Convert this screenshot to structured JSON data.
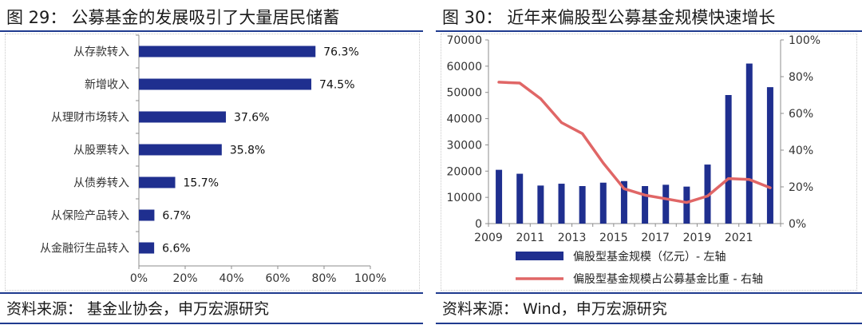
{
  "left": {
    "title": {
      "label": "图 29：",
      "text": "公募基金的发展吸引了大量居民储蓄"
    },
    "source": {
      "label": "资料来源：",
      "text": "基金业协会，申万宏源研究"
    }
  },
  "right": {
    "title": {
      "label": "图 30：",
      "text": "近年来偏股型公募基金规模快速增长"
    },
    "source": {
      "label": "资料来源：",
      "text": "Wind，申万宏源研究"
    }
  },
  "colors": {
    "bar": "#1f2f8f",
    "line": "#e06666",
    "rule": "#1f3b8f",
    "axis": "#8c8c8c"
  },
  "chart_data": [
    {
      "type": "bar",
      "orientation": "horizontal",
      "categories": [
        "从存款转入",
        "新增收入",
        "从理财市场转入",
        "从股票转入",
        "从债券转入",
        "从保险产品转入",
        "从金融衍生品转入"
      ],
      "values": [
        76.3,
        74.5,
        37.6,
        35.8,
        15.7,
        6.7,
        6.6
      ],
      "value_labels": [
        "76.3%",
        "74.5%",
        "37.6%",
        "35.8%",
        "15.7%",
        "6.7%",
        "6.6%"
      ],
      "xlim": [
        0,
        100
      ],
      "xticks": [
        "0%",
        "20%",
        "40%",
        "60%",
        "80%",
        "100%"
      ],
      "grid": false,
      "legend": "none"
    },
    {
      "type": "bar+line",
      "x": [
        2009,
        2010,
        2011,
        2012,
        2013,
        2014,
        2015,
        2016,
        2017,
        2018,
        2019,
        2020,
        2021,
        2022
      ],
      "xticks": [
        "2009",
        "2011",
        "2013",
        "2015",
        "2017",
        "2019",
        "2021"
      ],
      "series": [
        {
          "name": "偏股型基金规模（亿元）- 左轴",
          "type": "bar",
          "axis": "left",
          "values": [
            20500,
            19000,
            14500,
            15200,
            14300,
            15600,
            16200,
            14300,
            14800,
            14100,
            22500,
            49000,
            61000,
            52000
          ]
        },
        {
          "name": "偏股型基金规模占公募基金比重 - 右轴",
          "type": "line",
          "axis": "right",
          "values": [
            77,
            76.5,
            68,
            55,
            49,
            33,
            19,
            15.5,
            13.5,
            11.5,
            15,
            24.5,
            24,
            19.5
          ]
        }
      ],
      "ylim_left": [
        0,
        70000
      ],
      "yticks_left": [
        "0",
        "10000",
        "20000",
        "30000",
        "40000",
        "50000",
        "60000",
        "70000"
      ],
      "ylim_right": [
        0,
        100
      ],
      "yticks_right": [
        "0%",
        "20%",
        "40%",
        "60%",
        "80%",
        "100%"
      ],
      "grid": false,
      "legend": "bottom"
    }
  ]
}
